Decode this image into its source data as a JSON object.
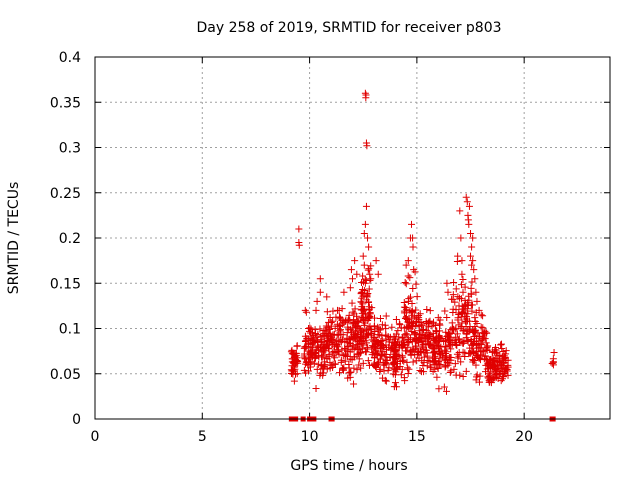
{
  "chart_data": {
    "type": "scatter",
    "title": "Day 258 of 2019, SRMTID for receiver p803",
    "xlabel": "GPS time / hours",
    "ylabel": "SRMTID / TECUs",
    "xlim": [
      0,
      24
    ],
    "ylim": [
      0,
      0.4
    ],
    "xticks": [
      0,
      5,
      10,
      15,
      20
    ],
    "xtick_labels": [
      "0",
      "5",
      "10",
      "15",
      "20"
    ],
    "yticks": [
      0,
      0.05,
      0.1,
      0.15,
      0.2,
      0.25,
      0.3,
      0.35,
      0.4
    ],
    "ytick_labels": [
      "0",
      "0.05",
      "0.1",
      "0.15",
      "0.2",
      "0.25",
      "0.3",
      "0.35",
      "0.4"
    ],
    "grid": true,
    "marker": "+",
    "color": "#e00000",
    "series": [
      {
        "name": "SRMTID",
        "clusters": [
          {
            "x_range": [
              9.15,
              9.45
            ],
            "y_range": [
              0.035,
              0.09
            ],
            "count": 45
          },
          {
            "x_range": [
              9.75,
              10.1
            ],
            "y_range": [
              0.03,
              0.12
            ],
            "count": 45
          },
          {
            "x_range": [
              10.1,
              10.7
            ],
            "y_range": [
              0.03,
              0.12
            ],
            "count": 70
          },
          {
            "x_range": [
              10.7,
              11.5
            ],
            "y_range": [
              0.04,
              0.13
            ],
            "count": 90
          },
          {
            "x_range": [
              11.5,
              12.4
            ],
            "y_range": [
              0.03,
              0.15
            ],
            "count": 110
          },
          {
            "x_range": [
              12.4,
              12.9
            ],
            "y_range": [
              0.04,
              0.19
            ],
            "count": 90
          },
          {
            "x_range": [
              12.9,
              13.6
            ],
            "y_range": [
              0.03,
              0.13
            ],
            "count": 90
          },
          {
            "x_range": [
              13.6,
              14.4
            ],
            "y_range": [
              0.02,
              0.12
            ],
            "count": 90
          },
          {
            "x_range": [
              14.4,
              15.0
            ],
            "y_range": [
              0.03,
              0.17
            ],
            "count": 90
          },
          {
            "x_range": [
              15.0,
              15.8
            ],
            "y_range": [
              0.03,
              0.14
            ],
            "count": 100
          },
          {
            "x_range": [
              15.8,
              16.6
            ],
            "y_range": [
              0.025,
              0.13
            ],
            "count": 100
          },
          {
            "x_range": [
              16.6,
              17.6
            ],
            "y_range": [
              0.03,
              0.18
            ],
            "count": 120
          },
          {
            "x_range": [
              17.6,
              18.3
            ],
            "y_range": [
              0.03,
              0.13
            ],
            "count": 80
          },
          {
            "x_range": [
              18.3,
              19.3
            ],
            "y_range": [
              0.03,
              0.09
            ],
            "count": 110
          },
          {
            "x_range": [
              21.3,
              21.4
            ],
            "y_range": [
              0.055,
              0.075
            ],
            "count": 6
          }
        ],
        "points": [
          [
            9.5,
            0.21
          ],
          [
            9.5,
            0.195
          ],
          [
            9.52,
            0.192
          ],
          [
            9.8,
            0.12
          ],
          [
            9.85,
            0.118
          ],
          [
            9.95,
            0.1
          ],
          [
            10.3,
            0.12
          ],
          [
            10.35,
            0.13
          ],
          [
            10.5,
            0.14
          ],
          [
            10.5,
            0.155
          ],
          [
            10.8,
            0.135
          ],
          [
            11.3,
            0.12
          ],
          [
            11.6,
            0.14
          ],
          [
            11.9,
            0.145
          ],
          [
            11.95,
            0.165
          ],
          [
            12.0,
            0.155
          ],
          [
            12.1,
            0.175
          ],
          [
            12.2,
            0.16
          ],
          [
            12.6,
            0.36
          ],
          [
            12.62,
            0.355
          ],
          [
            12.63,
            0.358
          ],
          [
            12.65,
            0.305
          ],
          [
            12.67,
            0.302
          ],
          [
            12.65,
            0.235
          ],
          [
            12.6,
            0.215
          ],
          [
            12.55,
            0.205
          ],
          [
            12.7,
            0.2
          ],
          [
            12.75,
            0.19
          ],
          [
            12.5,
            0.18
          ],
          [
            12.55,
            0.17
          ],
          [
            12.8,
            0.16
          ],
          [
            12.85,
            0.155
          ],
          [
            12.6,
            0.15
          ],
          [
            13.1,
            0.175
          ],
          [
            13.2,
            0.16
          ],
          [
            14.5,
            0.17
          ],
          [
            14.6,
            0.175
          ],
          [
            14.7,
            0.2
          ],
          [
            14.75,
            0.215
          ],
          [
            14.8,
            0.2
          ],
          [
            14.82,
            0.19
          ],
          [
            14.85,
            0.165
          ],
          [
            16.4,
            0.15
          ],
          [
            16.45,
            0.14
          ],
          [
            16.9,
            0.18
          ],
          [
            17.0,
            0.23
          ],
          [
            17.05,
            0.2
          ],
          [
            17.1,
            0.175
          ],
          [
            17.1,
            0.16
          ],
          [
            17.15,
            0.14
          ],
          [
            17.3,
            0.245
          ],
          [
            17.35,
            0.24
          ],
          [
            17.38,
            0.225
          ],
          [
            17.4,
            0.22
          ],
          [
            17.42,
            0.215
          ],
          [
            17.45,
            0.235
          ],
          [
            17.5,
            0.205
          ],
          [
            17.55,
            0.19
          ],
          [
            17.6,
            0.2
          ],
          [
            17.5,
            0.18
          ],
          [
            17.55,
            0.17
          ],
          [
            17.6,
            0.175
          ],
          [
            17.65,
            0.165
          ],
          [
            17.7,
            0.155
          ],
          [
            17.75,
            0.14
          ],
          [
            17.8,
            0.13
          ],
          [
            17.9,
            0.12
          ],
          [
            18.0,
            0.115
          ]
        ],
        "zero_points": [
          9.15,
          9.2,
          9.35,
          9.7,
          10.0,
          10.05,
          10.1,
          10.15,
          10.2,
          11.0,
          11.05,
          21.3,
          21.35
        ]
      }
    ]
  }
}
